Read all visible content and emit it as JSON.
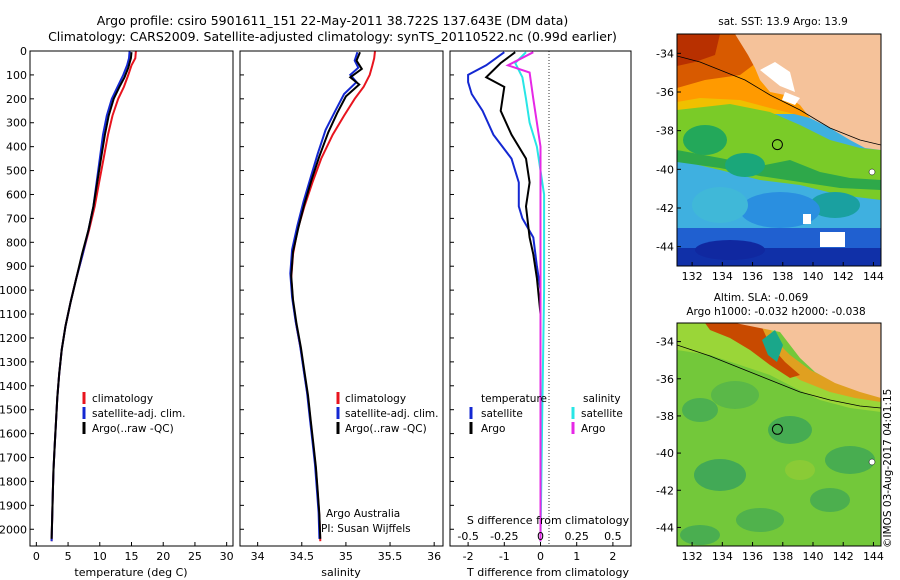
{
  "header": {
    "title_line1": "Argo profile: csiro 5901611_151 22-May-2011 38.722S 137.643E (DM data)",
    "title_line2": "Climatology: CARS2009. Satellite-adjusted climatology: synTS_20110522.nc (0.99d earlier)"
  },
  "colors": {
    "climatology": "#e8141e",
    "satellite": "#1428d2",
    "argo": "#000000",
    "sal_satellite": "#28e6e6",
    "sal_argo": "#e628e6",
    "land": "#f5c29a"
  },
  "chart_data": [
    {
      "type": "line",
      "id": "temperature",
      "xlabel": "temperature (deg C)",
      "ylabel": "",
      "xlim": [
        -1,
        31
      ],
      "ylim": [
        2070,
        0
      ],
      "xticks": [
        0,
        5,
        10,
        15,
        20,
        25,
        30
      ],
      "yticks": [
        0,
        100,
        200,
        300,
        400,
        500,
        600,
        700,
        800,
        900,
        1000,
        1100,
        1200,
        1300,
        1400,
        1500,
        1600,
        1700,
        1800,
        1900,
        2000
      ],
      "legend": [
        "climatology",
        "satellite-adj. clim.",
        "Argo(..raw -QC)"
      ],
      "legend_position": "lower-center",
      "series": [
        {
          "name": "climatology",
          "color": "#e8141e",
          "points": [
            [
              15.7,
              0
            ],
            [
              15.6,
              30
            ],
            [
              15.0,
              60
            ],
            [
              14.5,
              100
            ],
            [
              13.8,
              150
            ],
            [
              12.9,
              200
            ],
            [
              12.0,
              270
            ],
            [
              11.3,
              350
            ],
            [
              10.6,
              450
            ],
            [
              9.9,
              550
            ],
            [
              9.2,
              650
            ],
            [
              8.3,
              750
            ],
            [
              7.3,
              850
            ],
            [
              6.3,
              950
            ],
            [
              5.4,
              1050
            ],
            [
              4.6,
              1150
            ],
            [
              4.0,
              1250
            ],
            [
              3.6,
              1350
            ],
            [
              3.3,
              1450
            ],
            [
              3.1,
              1550
            ],
            [
              2.9,
              1650
            ],
            [
              2.7,
              1750
            ],
            [
              2.6,
              1850
            ],
            [
              2.5,
              1950
            ],
            [
              2.4,
              2050
            ]
          ]
        },
        {
          "name": "satellite-adj. clim.",
          "color": "#1428d2",
          "points": [
            [
              14.7,
              0
            ],
            [
              14.6,
              30
            ],
            [
              14.3,
              60
            ],
            [
              13.7,
              100
            ],
            [
              12.8,
              150
            ],
            [
              11.9,
              200
            ],
            [
              11.1,
              270
            ],
            [
              10.5,
              350
            ],
            [
              10.0,
              450
            ],
            [
              9.5,
              550
            ],
            [
              9.0,
              650
            ],
            [
              8.2,
              750
            ],
            [
              7.3,
              850
            ],
            [
              6.3,
              950
            ],
            [
              5.4,
              1050
            ],
            [
              4.6,
              1150
            ],
            [
              4.0,
              1250
            ],
            [
              3.6,
              1350
            ],
            [
              3.3,
              1450
            ],
            [
              3.1,
              1550
            ],
            [
              2.9,
              1650
            ],
            [
              2.7,
              1750
            ],
            [
              2.6,
              1850
            ],
            [
              2.5,
              1950
            ],
            [
              2.4,
              2050
            ]
          ]
        },
        {
          "name": "Argo(..raw -QC)",
          "color": "#000000",
          "points": [
            [
              15.0,
              5
            ],
            [
              14.9,
              30
            ],
            [
              14.5,
              70
            ],
            [
              13.9,
              110
            ],
            [
              13.1,
              150
            ],
            [
              12.2,
              200
            ],
            [
              11.4,
              270
            ],
            [
              10.8,
              350
            ],
            [
              10.2,
              450
            ],
            [
              9.6,
              550
            ],
            [
              9.0,
              650
            ],
            [
              8.2,
              750
            ],
            [
              7.2,
              850
            ],
            [
              6.3,
              950
            ],
            [
              5.4,
              1050
            ],
            [
              4.6,
              1150
            ],
            [
              4.0,
              1250
            ],
            [
              3.6,
              1350
            ],
            [
              3.3,
              1450
            ],
            [
              3.1,
              1550
            ],
            [
              2.9,
              1650
            ],
            [
              2.7,
              1750
            ],
            [
              2.6,
              1850
            ],
            [
              2.5,
              1950
            ],
            [
              2.4,
              2040
            ]
          ]
        }
      ]
    },
    {
      "type": "line",
      "id": "salinity",
      "xlabel": "salinity",
      "ylabel": "",
      "xlim": [
        33.8,
        36.1
      ],
      "ylim": [
        2070,
        0
      ],
      "xticks": [
        34,
        34.5,
        35,
        35.5,
        36
      ],
      "xtick_labels": [
        "34",
        "34.5",
        "35",
        "35.5",
        "36"
      ],
      "legend": [
        "climatology",
        "satellite-adj. clim.",
        "Argo(..raw -QC)"
      ],
      "legend_position": "lower-right",
      "annotation": [
        "Argo Australia",
        "PI: Susan Wijffels"
      ],
      "series": [
        {
          "name": "climatology",
          "color": "#e8141e",
          "points": [
            [
              35.33,
              0
            ],
            [
              35.32,
              30
            ],
            [
              35.3,
              60
            ],
            [
              35.27,
              100
            ],
            [
              35.2,
              150
            ],
            [
              35.1,
              200
            ],
            [
              34.98,
              270
            ],
            [
              34.85,
              350
            ],
            [
              34.72,
              450
            ],
            [
              34.62,
              550
            ],
            [
              34.53,
              650
            ],
            [
              34.45,
              750
            ],
            [
              34.4,
              850
            ],
            [
              34.38,
              950
            ],
            [
              34.4,
              1050
            ],
            [
              34.44,
              1150
            ],
            [
              34.49,
              1250
            ],
            [
              34.53,
              1350
            ],
            [
              34.57,
              1450
            ],
            [
              34.6,
              1550
            ],
            [
              34.63,
              1650
            ],
            [
              34.66,
              1750
            ],
            [
              34.68,
              1850
            ],
            [
              34.7,
              1950
            ],
            [
              34.71,
              2050
            ]
          ]
        },
        {
          "name": "satellite-adj. clim.",
          "color": "#1428d2",
          "points": [
            [
              35.13,
              5
            ],
            [
              35.1,
              40
            ],
            [
              35.14,
              70
            ],
            [
              35.05,
              100
            ],
            [
              35.12,
              130
            ],
            [
              34.98,
              180
            ],
            [
              34.88,
              250
            ],
            [
              34.77,
              330
            ],
            [
              34.68,
              430
            ],
            [
              34.6,
              530
            ],
            [
              34.52,
              630
            ],
            [
              34.45,
              730
            ],
            [
              34.39,
              830
            ],
            [
              34.37,
              930
            ],
            [
              34.39,
              1030
            ],
            [
              34.43,
              1130
            ],
            [
              34.48,
              1230
            ],
            [
              34.52,
              1330
            ],
            [
              34.56,
              1430
            ],
            [
              34.59,
              1530
            ],
            [
              34.62,
              1630
            ],
            [
              34.65,
              1730
            ],
            [
              34.67,
              1830
            ],
            [
              34.69,
              1930
            ],
            [
              34.7,
              2040
            ]
          ]
        },
        {
          "name": "Argo(..raw -QC)",
          "color": "#000000",
          "points": [
            [
              35.16,
              5
            ],
            [
              35.12,
              40
            ],
            [
              35.18,
              75
            ],
            [
              35.05,
              110
            ],
            [
              35.15,
              140
            ],
            [
              35.0,
              190
            ],
            [
              34.9,
              260
            ],
            [
              34.8,
              340
            ],
            [
              34.7,
              440
            ],
            [
              34.61,
              540
            ],
            [
              34.53,
              640
            ],
            [
              34.46,
              740
            ],
            [
              34.4,
              840
            ],
            [
              34.38,
              940
            ],
            [
              34.4,
              1040
            ],
            [
              34.44,
              1140
            ],
            [
              34.49,
              1240
            ],
            [
              34.53,
              1340
            ],
            [
              34.57,
              1440
            ],
            [
              34.6,
              1540
            ],
            [
              34.63,
              1640
            ],
            [
              34.66,
              1740
            ],
            [
              34.68,
              1840
            ],
            [
              34.7,
              1940
            ],
            [
              34.71,
              2040
            ]
          ]
        }
      ]
    },
    {
      "type": "line",
      "id": "differences",
      "xlabel": "T difference from climatology",
      "xlabel_top": "S difference from climatology",
      "xlim": [
        -2.5,
        2.5
      ],
      "ylim": [
        2070,
        0
      ],
      "xticks": [
        -2,
        -1,
        0,
        1,
        2
      ],
      "xticks_top": [
        -0.5,
        -0.25,
        0,
        0.25,
        0.5
      ],
      "xtick_labels_top": [
        "-0.5",
        "-0.25",
        "0",
        "0.25",
        "0.5"
      ],
      "legend_temperature": {
        "title": "temperature",
        "entries": [
          "satellite",
          "Argo"
        ]
      },
      "legend_salinity": {
        "title": "salinity",
        "entries": [
          "satellite",
          "Argo"
        ]
      },
      "series": [
        {
          "name": "temperature satellite",
          "color": "#1428d2",
          "points": [
            [
              -1.0,
              5
            ],
            [
              -1.5,
              60
            ],
            [
              -2.0,
              100
            ],
            [
              -2.0,
              130
            ],
            [
              -1.9,
              180
            ],
            [
              -1.6,
              250
            ],
            [
              -1.3,
              350
            ],
            [
              -0.8,
              450
            ],
            [
              -0.6,
              550
            ],
            [
              -0.6,
              650
            ],
            [
              -0.5,
              700
            ],
            [
              -0.2,
              780
            ],
            [
              -0.1,
              900
            ],
            [
              0,
              1000
            ],
            [
              0,
              1500
            ],
            [
              0,
              2050
            ]
          ]
        },
        {
          "name": "temperature Argo",
          "color": "#000000",
          "points": [
            [
              -0.7,
              5
            ],
            [
              -1.1,
              50
            ],
            [
              -1.5,
              110
            ],
            [
              -1.0,
              150
            ],
            [
              -1.1,
              250
            ],
            [
              -0.8,
              350
            ],
            [
              -0.4,
              450
            ],
            [
              -0.3,
              550
            ],
            [
              -0.4,
              650
            ],
            [
              -0.3,
              780
            ],
            [
              -0.2,
              850
            ],
            [
              -0.1,
              950
            ],
            [
              0,
              1100
            ],
            [
              0,
              1500
            ],
            [
              0,
              2050
            ]
          ]
        },
        {
          "name": "salinity satellite",
          "color": "#28e6e6",
          "points": [
            [
              -0.4,
              5
            ],
            [
              -0.7,
              50
            ],
            [
              -0.5,
              110
            ],
            [
              -0.4,
              200
            ],
            [
              -0.3,
              300
            ],
            [
              -0.1,
              400
            ],
            [
              0,
              500
            ],
            [
              0.1,
              600
            ],
            [
              0.1,
              800
            ],
            [
              0.1,
              1000
            ],
            [
              0.05,
              1500
            ],
            [
              0,
              2050
            ]
          ]
        },
        {
          "name": "salinity Argo",
          "color": "#e628e6",
          "points": [
            [
              -0.2,
              5
            ],
            [
              -0.9,
              60
            ],
            [
              -0.3,
              90
            ],
            [
              -0.2,
              200
            ],
            [
              -0.1,
              300
            ],
            [
              0,
              400
            ],
            [
              0,
              600
            ],
            [
              0,
              900
            ],
            [
              0,
              1500
            ],
            [
              0,
              2050
            ]
          ]
        }
      ]
    },
    {
      "type": "heatmap",
      "id": "sst_map",
      "title": "sat. SST: 13.9 Argo: 13.9",
      "xticks": [
        132,
        134,
        136,
        138,
        140,
        142,
        144
      ],
      "yticks": [
        -34,
        -36,
        -38,
        -40,
        -42,
        -44
      ],
      "xlim": [
        131,
        144.5
      ],
      "ylim": [
        -45,
        -33
      ],
      "marker": {
        "lon": 137.643,
        "lat": -38.722
      }
    },
    {
      "type": "heatmap",
      "id": "sla_map",
      "title_line1": "Altim. SLA: -0.069",
      "title_line2": "Argo h1000: -0.032 h2000: -0.038",
      "xticks": [
        132,
        134,
        136,
        138,
        140,
        142,
        144
      ],
      "yticks": [
        -34,
        -36,
        -38,
        -40,
        -42,
        -44
      ],
      "xlim": [
        131,
        144.5
      ],
      "ylim": [
        -45,
        -33
      ],
      "marker": {
        "lon": 137.643,
        "lat": -38.722
      }
    }
  ],
  "footer": {
    "stamp": "©IMOS 03-Aug-2017 04:01:15"
  }
}
